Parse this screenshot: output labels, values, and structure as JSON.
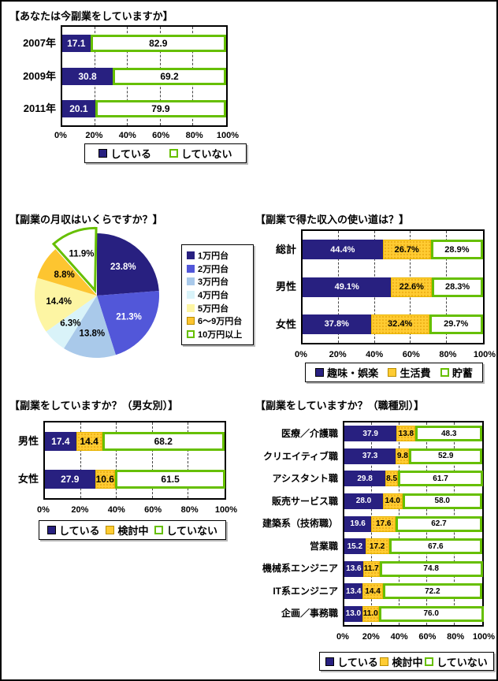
{
  "colors": {
    "navy": "#282080",
    "yellow": "#ffcc33",
    "green_outline": "#66bf00",
    "pie_blue": "#5257d9",
    "pie_lightblue": "#a9c9ea",
    "pie_paleblue": "#d9f3f9",
    "pie_paleyellow": "#fdf5a3",
    "pie_gold": "#fdc530"
  },
  "chart_data": [
    {
      "type": "bar",
      "orientation": "horizontal-stacked",
      "title": "【あなたは今副業をしていますか】",
      "categories": [
        "2007年",
        "2009年",
        "2011年"
      ],
      "series": [
        {
          "name": "している",
          "style": "navy",
          "values": [
            17.1,
            30.8,
            20.1
          ]
        },
        {
          "name": "していない",
          "style": "white-green",
          "values": [
            82.9,
            69.2,
            79.9
          ]
        }
      ],
      "x_ticks": [
        "0%",
        "20%",
        "40%",
        "60%",
        "80%",
        "100%"
      ],
      "xlim": [
        0,
        100
      ],
      "value_suffix": "",
      "grid": "dashed-vertical",
      "legend_position": "bottom"
    },
    {
      "type": "pie",
      "title": "【副業の月収はいくらですか？】",
      "start_angle": "top",
      "direction": "clockwise",
      "legend_position": "right",
      "slices": [
        {
          "label": "1万円台",
          "value": 23.8,
          "display": "23.8%",
          "color": "#282080",
          "text": "#ffffff"
        },
        {
          "label": "2万円台",
          "value": 21.3,
          "display": "21.3%",
          "color": "#5257d9",
          "text": "#ffffff"
        },
        {
          "label": "3万円台",
          "value": 13.8,
          "display": "13.8%",
          "color": "#a9c9ea",
          "text": "#000000"
        },
        {
          "label": "4万円台",
          "value": 6.3,
          "display": "6.3%",
          "color": "#d9f3f9",
          "text": "#000000"
        },
        {
          "label": "5万円台",
          "value": 14.4,
          "display": "14.4%",
          "color": "#fdf5a3",
          "text": "#000000"
        },
        {
          "label": "6～9万円台",
          "value": 8.8,
          "display": "8.8%",
          "color": "#fdc530",
          "text": "#000000"
        },
        {
          "label": "10万円以上",
          "value": 11.9,
          "display": "11.9%",
          "color": "#ffffff",
          "text": "#000000",
          "outline": "#66bf00",
          "exploded": true
        }
      ]
    },
    {
      "type": "bar",
      "orientation": "horizontal-stacked",
      "title": "【副業で得た収入の使い道は？】",
      "categories": [
        "総計",
        "男性",
        "女性"
      ],
      "series": [
        {
          "name": "趣味・娯楽",
          "style": "navy",
          "values": [
            44.4,
            49.1,
            37.8
          ]
        },
        {
          "name": "生活費",
          "style": "yellow",
          "values": [
            26.7,
            22.6,
            32.4
          ]
        },
        {
          "name": "貯蓄",
          "style": "white-green",
          "values": [
            28.9,
            28.3,
            29.7
          ]
        }
      ],
      "x_ticks": [
        "0%",
        "20%",
        "40%",
        "60%",
        "80%",
        "100%"
      ],
      "xlim": [
        0,
        100
      ],
      "value_suffix": "%",
      "grid": "dashed-vertical",
      "legend_position": "bottom"
    },
    {
      "type": "bar",
      "orientation": "horizontal-stacked",
      "title": "【副業をしていますか？（男女別）】",
      "categories": [
        "男性",
        "女性"
      ],
      "series": [
        {
          "name": "している",
          "style": "navy",
          "values": [
            17.4,
            27.9
          ]
        },
        {
          "name": "検討中",
          "style": "yellow",
          "values": [
            14.4,
            10.6
          ]
        },
        {
          "name": "していない",
          "style": "white-green",
          "values": [
            68.2,
            61.5
          ]
        }
      ],
      "x_ticks": [
        "0%",
        "20%",
        "40%",
        "60%",
        "80%",
        "100%"
      ],
      "xlim": [
        0,
        100
      ],
      "value_suffix": "",
      "grid": "dashed-vertical",
      "legend_position": "bottom"
    },
    {
      "type": "bar",
      "orientation": "horizontal-stacked",
      "title": "【副業をしていますか？（職種別）】",
      "categories": [
        "医療／介護職",
        "クリエイティブ職",
        "アシスタント職",
        "販売サービス職",
        "建築系（技術職）",
        "営業職",
        "機械系エンジニア",
        "IT系エンジニア",
        "企画／事務職"
      ],
      "series": [
        {
          "name": "している",
          "style": "navy",
          "values": [
            37.9,
            37.3,
            29.8,
            28.0,
            19.6,
            15.2,
            13.6,
            13.4,
            13.0
          ]
        },
        {
          "name": "検討中",
          "style": "yellow",
          "values": [
            13.8,
            9.8,
            8.5,
            14.0,
            17.6,
            17.2,
            11.7,
            14.4,
            11.0
          ]
        },
        {
          "name": "していない",
          "style": "white-green",
          "values": [
            48.3,
            52.9,
            61.7,
            58.0,
            62.7,
            67.6,
            74.8,
            72.2,
            76.0
          ]
        }
      ],
      "x_ticks": [
        "0%",
        "20%",
        "40%",
        "60%",
        "80%",
        "100%"
      ],
      "xlim": [
        0,
        100
      ],
      "value_suffix": "",
      "grid": "dashed-vertical",
      "legend_position": "bottom"
    }
  ]
}
